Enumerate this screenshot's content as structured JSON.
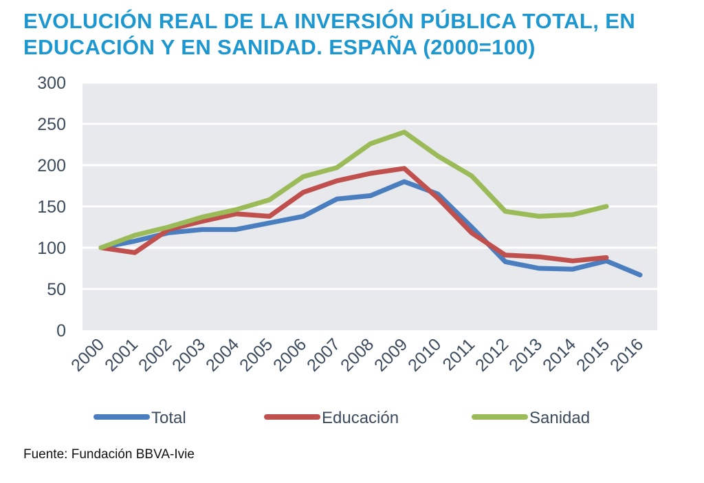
{
  "chart_data": {
    "type": "line",
    "title": "EVOLUCIÓN REAL DE LA INVERSIÓN PÚBLICA TOTAL, EN",
    "subtitle": "EDUCACIÓN Y EN SANIDAD. ESPAÑA (2000=100)",
    "categories": [
      "2000",
      "2001",
      "2002",
      "2003",
      "2004",
      "2005",
      "2006",
      "2007",
      "2008",
      "2009",
      "2010",
      "2011",
      "2012",
      "2013",
      "2014",
      "2015",
      "2016"
    ],
    "y_ticks": [
      "0",
      "50",
      "100",
      "150",
      "200",
      "250",
      "300"
    ],
    "ylim": [
      0,
      300
    ],
    "grid": true,
    "legend_position": "bottom",
    "series": [
      {
        "name": "Total",
        "color": "#4a7ebf",
        "values": [
          100,
          108,
          118,
          122,
          122,
          130,
          138,
          159,
          163,
          180,
          165,
          125,
          83,
          75,
          74,
          84,
          67
        ]
      },
      {
        "name": "Educación",
        "color": "#c0504d",
        "values": [
          100,
          94,
          122,
          132,
          141,
          138,
          167,
          181,
          190,
          196,
          160,
          118,
          91,
          89,
          84,
          88,
          null
        ]
      },
      {
        "name": "Sanidad",
        "color": "#9bbb59",
        "values": [
          100,
          115,
          125,
          137,
          146,
          158,
          186,
          197,
          226,
          240,
          211,
          187,
          144,
          138,
          140,
          150,
          null
        ]
      }
    ]
  },
  "source": "Fuente: Fundación BBVA-Ivie"
}
